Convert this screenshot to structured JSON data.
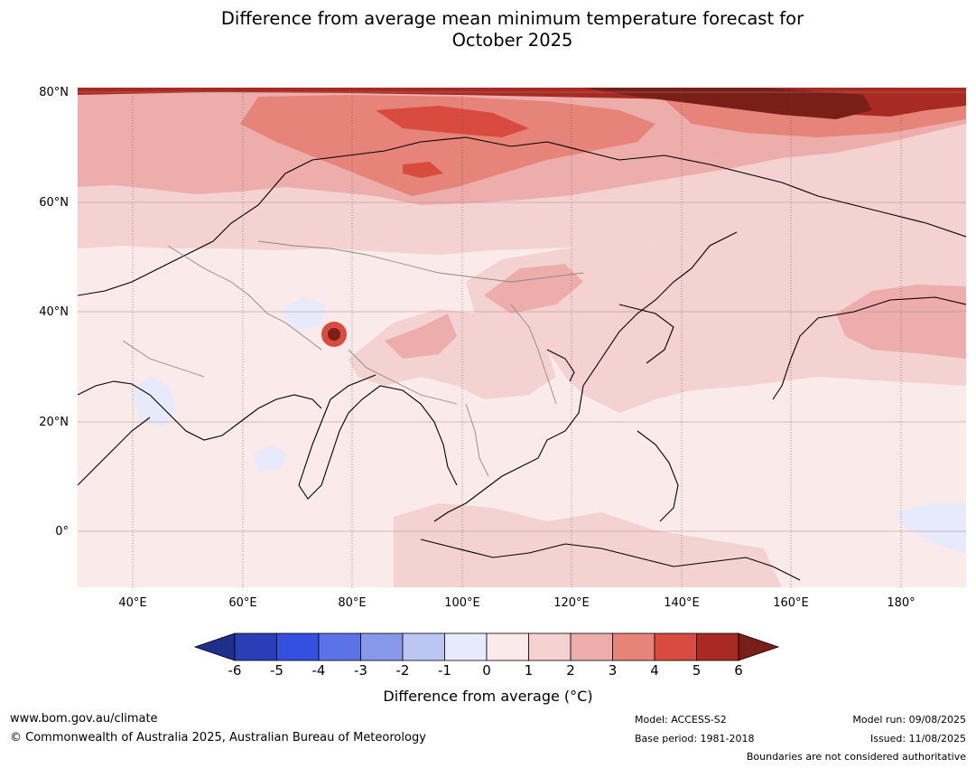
{
  "title_line1": "Difference from average mean minimum temperature forecast for",
  "title_line2": "October 2025",
  "lat_labels": [
    "80°N",
    "60°N",
    "40°N",
    "20°N",
    "0°"
  ],
  "lon_labels": [
    "40°E",
    "60°E",
    "80°E",
    "100°E",
    "120°E",
    "140°E",
    "160°E",
    "180°"
  ],
  "colorbar": {
    "ticks": [
      "-6",
      "-5",
      "-4",
      "-3",
      "-2",
      "-1",
      "0",
      "1",
      "2",
      "3",
      "4",
      "5",
      "6"
    ],
    "colors": [
      "#1f2f8c",
      "#2a3eb8",
      "#3350e0",
      "#5a73e6",
      "#8797ea",
      "#bcc6f3",
      "#e6eafa",
      "#fbeaea",
      "#f4d2d2",
      "#edaeab",
      "#e68479",
      "#d94a3f",
      "#a92a23",
      "#7a1e18"
    ],
    "title": "Difference from average (°C)"
  },
  "footer": {
    "website": "www.bom.gov.au/climate",
    "copyright": "© Commonwealth of Australia 2025, Australian Bureau of Meteorology",
    "model": "Model: ACCESS-S2",
    "base_period": "Base period: 1981-2018",
    "model_run": "Model run: 09/08/2025",
    "issued": "Issued: 11/08/2025",
    "disclaimer": "Boundaries are not considered authoritative"
  }
}
